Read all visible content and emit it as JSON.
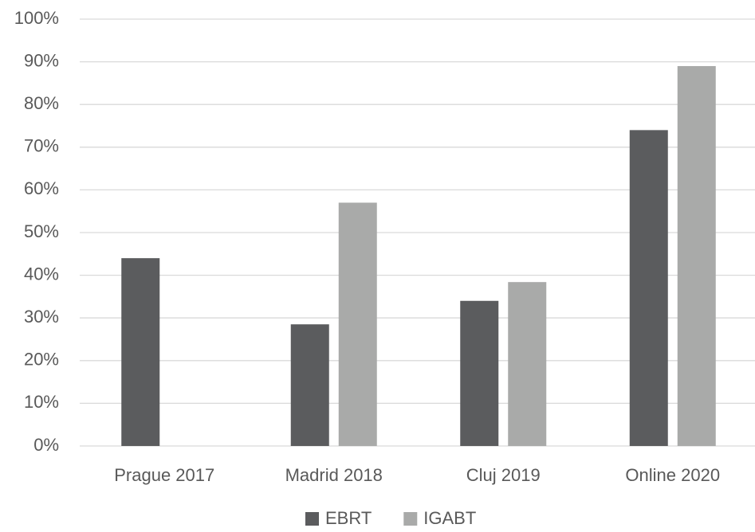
{
  "chart_data": {
    "type": "bar",
    "categories": [
      "Prague 2017",
      "Madrid 2018",
      "Cluj 2019",
      "Online 2020"
    ],
    "series": [
      {
        "name": "EBRT",
        "color": "#5b5c5e",
        "values": [
          44,
          28.5,
          34,
          74
        ]
      },
      {
        "name": "IGABT",
        "color": "#a9aaa9",
        "values": [
          null,
          57,
          38.4,
          89
        ]
      }
    ],
    "ylim": [
      0,
      100
    ],
    "yticks": [
      {
        "value": 0,
        "label": "0%"
      },
      {
        "value": 10,
        "label": "10%"
      },
      {
        "value": 20,
        "label": "20%"
      },
      {
        "value": 30,
        "label": "30%"
      },
      {
        "value": 40,
        "label": "40%"
      },
      {
        "value": 50,
        "label": "50%"
      },
      {
        "value": 60,
        "label": "60%"
      },
      {
        "value": 70,
        "label": "70%"
      },
      {
        "value": 80,
        "label": "80%"
      },
      {
        "value": 90,
        "label": "90%"
      },
      {
        "value": 100,
        "label": "100%"
      }
    ],
    "grid": true,
    "legend": "bottom"
  }
}
